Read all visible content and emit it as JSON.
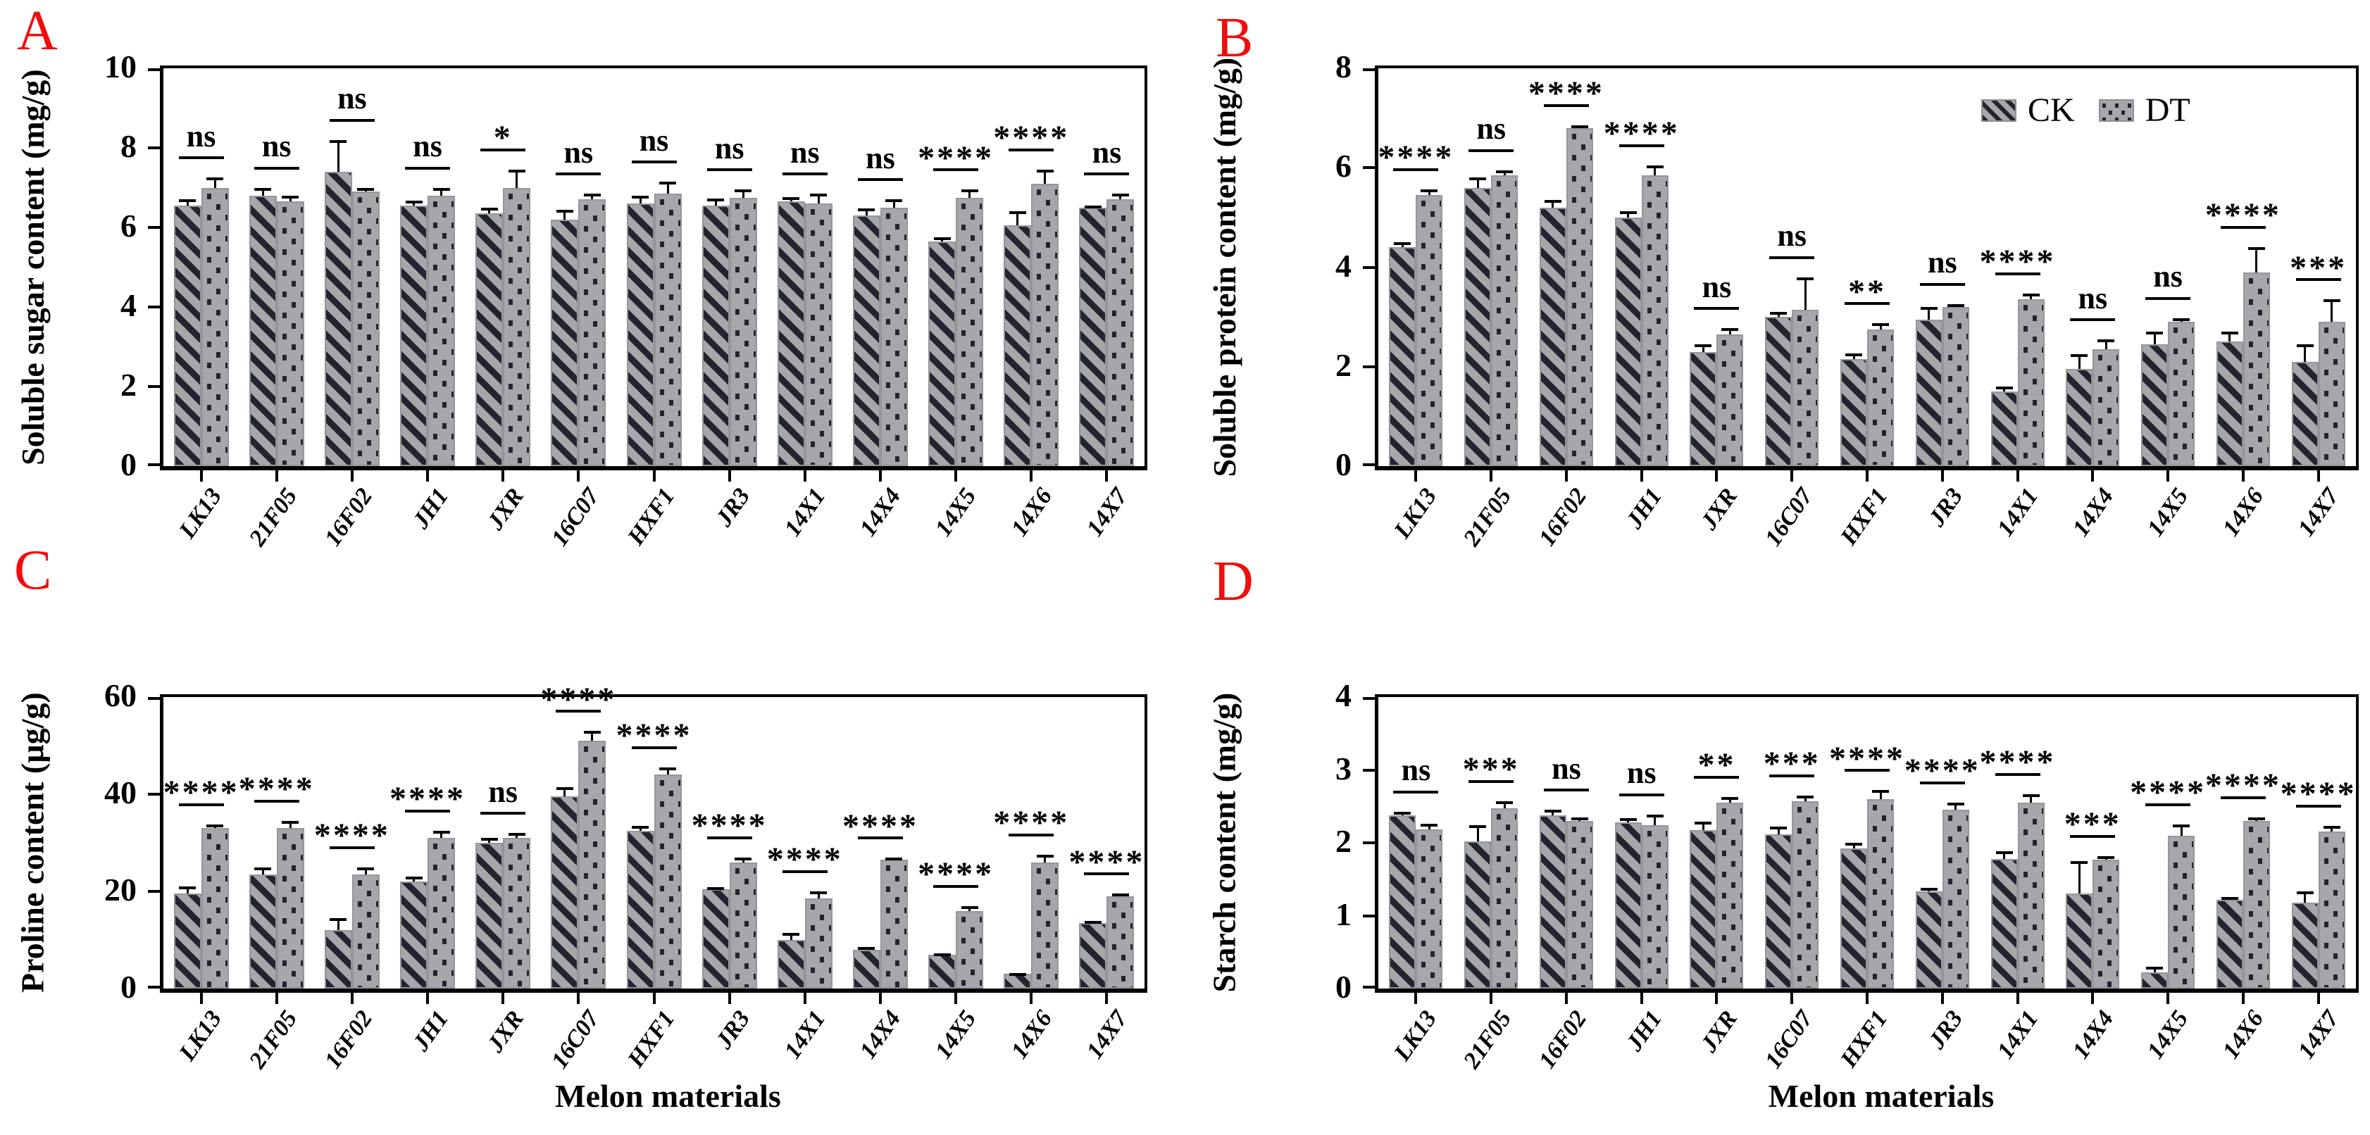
{
  "colors": {
    "bar_fill": "#a6a7ab",
    "pattern_dark": "#22252f",
    "bar_border": "#95969a",
    "axis": "#000000",
    "panel_letter": "#f40b0b"
  },
  "legend": {
    "entries": [
      {
        "label": "CK",
        "swatch": "diagonal-hatch"
      },
      {
        "label": "DT",
        "swatch": "dotted"
      }
    ]
  },
  "categories": [
    "LK13",
    "21F05",
    "16F02",
    "JH1",
    "JXR",
    "16C07",
    "HXF1",
    "JR3",
    "14X1",
    "14X4",
    "14X5",
    "14X6",
    "14X7"
  ],
  "chart_data": [
    {
      "type": "bar",
      "panel_label": "A",
      "title": "",
      "ylabel": "Soluble sugar content (mg/g)",
      "xlabel": "",
      "ylim": [
        0,
        10
      ],
      "yticks": [
        0,
        2,
        4,
        6,
        8,
        10
      ],
      "grid": false,
      "legend_position": "none",
      "categories": [
        "LK13",
        "21F05",
        "16F02",
        "JH1",
        "JXR",
        "16C07",
        "HXF1",
        "JR3",
        "14X1",
        "14X4",
        "14X5",
        "14X6",
        "14X7"
      ],
      "series": [
        {
          "name": "CK",
          "values": [
            6.55,
            6.8,
            7.4,
            6.55,
            6.35,
            6.2,
            6.6,
            6.55,
            6.65,
            6.3,
            5.65,
            6.05,
            6.5
          ],
          "errors": [
            0.15,
            0.2,
            0.8,
            0.12,
            0.15,
            0.25,
            0.2,
            0.18,
            0.12,
            0.18,
            0.1,
            0.35,
            0.05
          ]
        },
        {
          "name": "DT",
          "values": [
            7.0,
            6.65,
            6.9,
            6.8,
            7.0,
            6.7,
            6.85,
            6.75,
            6.6,
            6.5,
            6.75,
            7.1,
            6.7
          ],
          "errors": [
            0.25,
            0.15,
            0.1,
            0.2,
            0.45,
            0.15,
            0.3,
            0.2,
            0.25,
            0.2,
            0.2,
            0.35,
            0.15
          ]
        }
      ],
      "significance": [
        "ns",
        "ns",
        "ns",
        "ns",
        "*",
        "ns",
        "ns",
        "ns",
        "ns",
        "ns",
        "****",
        "****",
        "ns"
      ]
    },
    {
      "type": "bar",
      "panel_label": "B",
      "title": "",
      "ylabel": "Soluble protein content (mg/g)",
      "xlabel": "",
      "ylim": [
        0,
        8
      ],
      "yticks": [
        0,
        2,
        4,
        6,
        8
      ],
      "grid": false,
      "legend_position": "top-right",
      "categories": [
        "LK13",
        "21F05",
        "16F02",
        "JH1",
        "JXR",
        "16C07",
        "HXF1",
        "JR3",
        "14X1",
        "14X4",
        "14X5",
        "14X6",
        "14X7"
      ],
      "series": [
        {
          "name": "CK",
          "values": [
            4.4,
            5.6,
            5.2,
            5.0,
            2.3,
            3.0,
            2.15,
            2.95,
            1.5,
            1.95,
            2.45,
            2.5,
            2.1
          ],
          "errors": [
            0.1,
            0.2,
            0.15,
            0.12,
            0.15,
            0.1,
            0.12,
            0.25,
            0.1,
            0.3,
            0.25,
            0.2,
            0.35
          ]
        },
        {
          "name": "DT",
          "values": [
            5.45,
            5.85,
            6.8,
            5.85,
            2.65,
            3.15,
            2.75,
            3.2,
            3.35,
            2.35,
            2.9,
            3.9,
            2.9
          ],
          "errors": [
            0.12,
            0.1,
            0.05,
            0.2,
            0.12,
            0.65,
            0.12,
            0.06,
            0.12,
            0.2,
            0.08,
            0.5,
            0.45
          ]
        }
      ],
      "significance": [
        "****",
        "ns",
        "****",
        "****",
        "ns",
        "ns",
        "**",
        "ns",
        "****",
        "ns",
        "ns",
        "****",
        "***"
      ]
    },
    {
      "type": "bar",
      "panel_label": "C",
      "title": "",
      "ylabel": "Proline content (µg/g)",
      "xlabel": "Melon materials",
      "ylim": [
        0,
        60
      ],
      "yticks": [
        0,
        20,
        40,
        60
      ],
      "grid": false,
      "legend_position": "none",
      "categories": [
        "LK13",
        "21F05",
        "16F02",
        "JH1",
        "JXR",
        "16C07",
        "HXF1",
        "JR3",
        "14X1",
        "14X4",
        "14X5",
        "14X6",
        "14X7"
      ],
      "series": [
        {
          "name": "CK",
          "values": [
            19.5,
            23.5,
            12,
            22,
            30,
            39.5,
            32.5,
            20.5,
            10,
            8,
            7,
            3,
            13.5
          ],
          "errors": [
            1.5,
            1.5,
            2.5,
            1,
            1,
            2,
            1,
            0.4,
            1.5,
            0.6,
            0.3,
            0.2,
            0.4
          ]
        },
        {
          "name": "DT",
          "values": [
            33,
            33,
            23.5,
            31,
            31,
            51,
            44,
            26,
            18.5,
            26.5,
            16,
            26,
            19
          ],
          "errors": [
            0.8,
            1.5,
            1.5,
            1.5,
            1,
            2,
            1.5,
            1,
            1.5,
            0.4,
            1,
            1.5,
            0.5
          ]
        }
      ],
      "significance": [
        "****",
        "****",
        "****",
        "****",
        "ns",
        "****",
        "****",
        "****",
        "****",
        "****",
        "****",
        "****",
        "****"
      ]
    },
    {
      "type": "bar",
      "panel_label": "D",
      "title": "",
      "ylabel": "Starch content (mg/g)",
      "xlabel": "Melon materials",
      "ylim": [
        0,
        4
      ],
      "yticks": [
        0,
        1,
        2,
        3,
        4
      ],
      "grid": false,
      "legend_position": "none",
      "categories": [
        "LK13",
        "21F05",
        "16F02",
        "JH1",
        "JXR",
        "16C07",
        "HXF1",
        "JR3",
        "14X1",
        "14X4",
        "14X5",
        "14X6",
        "14X7"
      ],
      "series": [
        {
          "name": "CK",
          "values": [
            2.38,
            2.02,
            2.38,
            2.28,
            2.17,
            2.12,
            1.92,
            1.33,
            1.78,
            1.3,
            0.22,
            1.22,
            1.18
          ],
          "errors": [
            0.05,
            0.22,
            0.07,
            0.06,
            0.12,
            0.1,
            0.08,
            0.05,
            0.1,
            0.45,
            0.08,
            0.04,
            0.15
          ]
        },
        {
          "name": "DT",
          "values": [
            2.18,
            2.47,
            2.3,
            2.24,
            2.55,
            2.57,
            2.6,
            2.45,
            2.55,
            1.77,
            2.1,
            2.3,
            2.15
          ],
          "errors": [
            0.08,
            0.1,
            0.05,
            0.15,
            0.08,
            0.08,
            0.12,
            0.1,
            0.12,
            0.05,
            0.15,
            0.05,
            0.08
          ]
        }
      ],
      "significance": [
        "ns",
        "***",
        "ns",
        "ns",
        "**",
        "***",
        "****",
        "****",
        "****",
        "***",
        "****",
        "****",
        "****"
      ]
    }
  ]
}
